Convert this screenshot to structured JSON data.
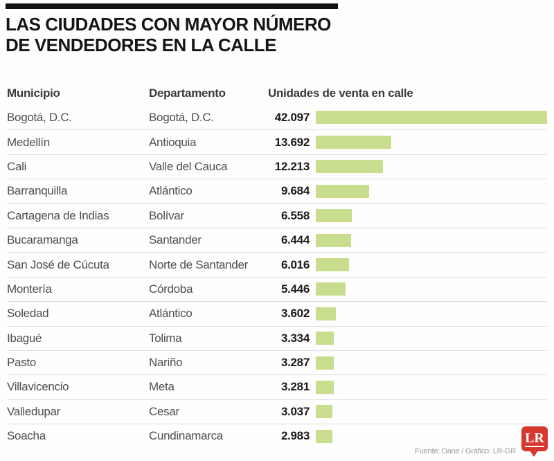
{
  "title": {
    "line1": "LAS CIUDADES CON MAYOR NÚMERO",
    "line2": "DE VENDEDORES EN LA CALLE"
  },
  "columns": {
    "municipio": "Municipio",
    "departamento": "Departamento",
    "unidades": "Unidades de venta en calle"
  },
  "rows": [
    {
      "municipio": "Bogotá, D.C.",
      "departamento": "Bogotá, D.C.",
      "value_label": "42.097",
      "value": 42097
    },
    {
      "municipio": "Medellín",
      "departamento": "Antioquia",
      "value_label": "13.692",
      "value": 13692
    },
    {
      "municipio": "Cali",
      "departamento": "Valle del Cauca",
      "value_label": "12.213",
      "value": 12213
    },
    {
      "municipio": "Barranquilla",
      "departamento": "Atlántico",
      "value_label": "9.684",
      "value": 9684
    },
    {
      "municipio": "Cartagena de Indias",
      "departamento": "Bolívar",
      "value_label": "6.558",
      "value": 6558
    },
    {
      "municipio": "Bucaramanga",
      "departamento": "Santander",
      "value_label": "6.444",
      "value": 6444
    },
    {
      "municipio": "San José de Cúcuta",
      "departamento": "Norte de Santander",
      "value_label": "6.016",
      "value": 6016
    },
    {
      "municipio": "Montería",
      "departamento": "Córdoba",
      "value_label": "5.446",
      "value": 5446
    },
    {
      "municipio": "Soledad",
      "departamento": "Atlántico",
      "value_label": "3.602",
      "value": 3602
    },
    {
      "municipio": "Ibagué",
      "departamento": "Tolima",
      "value_label": "3.334",
      "value": 3334
    },
    {
      "municipio": "Pasto",
      "departamento": "Nariño",
      "value_label": "3.287",
      "value": 3287
    },
    {
      "municipio": "Villavicencio",
      "departamento": "Meta",
      "value_label": "3.281",
      "value": 3281
    },
    {
      "municipio": "Valledupar",
      "departamento": "Cesar",
      "value_label": "3.037",
      "value": 3037
    },
    {
      "municipio": "Soacha",
      "departamento": "Cundinamarca",
      "value_label": "2.983",
      "value": 2983
    }
  ],
  "footer": {
    "source": "Fuente: Dane / Gráfico: LR-GR",
    "logo_text": "LR"
  },
  "colors": {
    "bar": "#c8dd8d",
    "logo_red": "#d6382f"
  },
  "chart_data": {
    "type": "bar",
    "orientation": "horizontal",
    "title": "LAS CIUDADES CON MAYOR NÚMERO DE VENDEDORES EN LA CALLE",
    "categories": [
      "Bogotá, D.C.",
      "Medellín",
      "Cali",
      "Barranquilla",
      "Cartagena de Indias",
      "Bucaramanga",
      "San José de Cúcuta",
      "Montería",
      "Soledad",
      "Ibagué",
      "Pasto",
      "Villavicencio",
      "Valledupar",
      "Soacha"
    ],
    "departamentos": [
      "Bogotá, D.C.",
      "Antioquia",
      "Valle del Cauca",
      "Atlántico",
      "Bolívar",
      "Santander",
      "Norte de Santander",
      "Córdoba",
      "Atlántico",
      "Tolima",
      "Nariño",
      "Meta",
      "Cesar",
      "Cundinamarca"
    ],
    "values": [
      42097,
      13692,
      12213,
      9684,
      6558,
      6444,
      6016,
      5446,
      3602,
      3334,
      3287,
      3281,
      3037,
      2983
    ],
    "xlabel": "Unidades de venta en calle",
    "xlim": [
      0,
      42097
    ],
    "grid": false,
    "legend": false,
    "bar_color": "#c8dd8d",
    "source": "Fuente: Dane / Gráfico: LR-GR"
  }
}
